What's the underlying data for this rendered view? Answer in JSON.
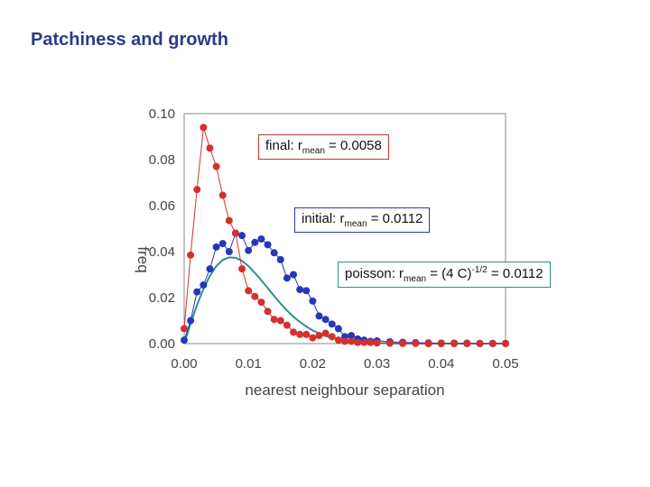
{
  "slide": {
    "title": "Patchiness and growth"
  },
  "annotations": {
    "final": {
      "prefix": "final: r",
      "sub": "mean",
      "suffix": " = 0.0058"
    },
    "initial": {
      "prefix": "initial: r",
      "sub": "mean",
      "suffix": " = 0.0112"
    },
    "poisson": {
      "prefix": "poisson: r",
      "sub": "mean",
      "mid": " = (4 C)",
      "sup": "-1/2",
      "suffix": " = 0.0112"
    }
  },
  "chart_data": {
    "type": "scatter",
    "xlabel": "nearest neighbour separation",
    "ylabel": "freq",
    "xlim": [
      0,
      0.05
    ],
    "ylim": [
      0,
      0.1
    ],
    "xticks": [
      "0.00",
      "0.01",
      "0.02",
      "0.03",
      "0.04",
      "0.05"
    ],
    "yticks": [
      "0.00",
      "0.02",
      "0.04",
      "0.06",
      "0.08",
      "0.10"
    ],
    "grid": false,
    "series": [
      {
        "style": "points-with-line",
        "color": "#d62f2f",
        "x": [
          0.0,
          0.001,
          0.002,
          0.003,
          0.004,
          0.005,
          0.006,
          0.007,
          0.008,
          0.009,
          0.01,
          0.011,
          0.012,
          0.013,
          0.014,
          0.015,
          0.016,
          0.017,
          0.018,
          0.019,
          0.02,
          0.021,
          0.022,
          0.023,
          0.024,
          0.025,
          0.026,
          0.027,
          0.028,
          0.029,
          0.03,
          0.032,
          0.034,
          0.036,
          0.038,
          0.04,
          0.042,
          0.044,
          0.046,
          0.048,
          0.05
        ],
        "y": [
          0.0065,
          0.0385,
          0.067,
          0.094,
          0.085,
          0.077,
          0.0645,
          0.0535,
          0.048,
          0.0325,
          0.023,
          0.0205,
          0.018,
          0.014,
          0.0105,
          0.01,
          0.008,
          0.005,
          0.004,
          0.004,
          0.0025,
          0.0035,
          0.0045,
          0.003,
          0.0015,
          0.001,
          0.001,
          0.0005,
          0.0005,
          0.0005,
          0.0003,
          0.0002,
          0.0001,
          0.0001,
          0.0,
          0.0,
          0.0,
          0.0,
          0.0,
          0.0,
          0.0
        ]
      },
      {
        "style": "points-with-line",
        "color": "#2438b8",
        "x": [
          0.0,
          0.001,
          0.002,
          0.003,
          0.004,
          0.005,
          0.006,
          0.007,
          0.008,
          0.009,
          0.01,
          0.011,
          0.012,
          0.013,
          0.014,
          0.015,
          0.016,
          0.017,
          0.018,
          0.019,
          0.02,
          0.021,
          0.022,
          0.023,
          0.024,
          0.025,
          0.026,
          0.027,
          0.028,
          0.029,
          0.03,
          0.032,
          0.034,
          0.036,
          0.038,
          0.04,
          0.042,
          0.044,
          0.046,
          0.048,
          0.05
        ],
        "y": [
          0.0015,
          0.01,
          0.0225,
          0.0255,
          0.0325,
          0.042,
          0.0435,
          0.04,
          0.048,
          0.047,
          0.0405,
          0.044,
          0.0455,
          0.043,
          0.0395,
          0.0365,
          0.0285,
          0.03,
          0.0235,
          0.023,
          0.0185,
          0.012,
          0.0105,
          0.0085,
          0.0065,
          0.003,
          0.0035,
          0.002,
          0.0015,
          0.001,
          0.0012,
          0.0008,
          0.0006,
          0.0004,
          0.0003,
          0.0002,
          0.0002,
          0.0002,
          0.0001,
          0.0001,
          0.0001
        ]
      },
      {
        "style": "line",
        "color": "#2f8f8a",
        "x": [
          0.0,
          0.001,
          0.002,
          0.003,
          0.004,
          0.005,
          0.006,
          0.007,
          0.008,
          0.009,
          0.01,
          0.011,
          0.012,
          0.013,
          0.014,
          0.015,
          0.016,
          0.017,
          0.018,
          0.019,
          0.02,
          0.022,
          0.024,
          0.026,
          0.028,
          0.03,
          0.032,
          0.034,
          0.036,
          0.038,
          0.04,
          0.042,
          0.044,
          0.046,
          0.048,
          0.05
        ],
        "y": [
          0.0,
          0.0087,
          0.0168,
          0.0238,
          0.0295,
          0.0337,
          0.0364,
          0.0375,
          0.0373,
          0.036,
          0.0337,
          0.0308,
          0.0276,
          0.0241,
          0.0207,
          0.0174,
          0.0144,
          0.0117,
          0.0094,
          0.0074,
          0.0057,
          0.0033,
          0.0018,
          0.0009,
          0.0004,
          0.0002,
          0.0001,
          0.0,
          0.0,
          0.0,
          0.0,
          0.0,
          0.0,
          0.0,
          0.0,
          0.0
        ]
      }
    ]
  }
}
